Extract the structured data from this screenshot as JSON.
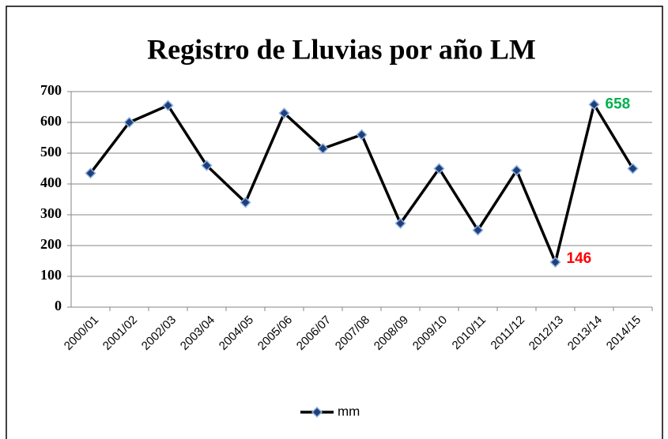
{
  "chart_data": {
    "type": "line",
    "title": "Registro de Lluvias por año LM",
    "categories": [
      "2000/01",
      "2001/02",
      "2002/03",
      "2003/04",
      "2004/05",
      "2005/06",
      "2006/07",
      "2007/08",
      "2008/09",
      "2009/10",
      "2010/11",
      "2011/12",
      "2012/13",
      "2013/14",
      "2014/15"
    ],
    "series": [
      {
        "name": "mm",
        "color": "#000000",
        "marker_color": "#1f3f7a",
        "values": [
          435,
          600,
          655,
          460,
          340,
          630,
          515,
          560,
          272,
          450,
          250,
          444,
          146,
          658,
          450
        ]
      }
    ],
    "data_labels": [
      {
        "index": 12,
        "color": "#ff0000"
      },
      {
        "index": 13,
        "color": "#00b050"
      }
    ],
    "ylim": [
      0,
      700
    ],
    "yticks": [
      0,
      100,
      200,
      300,
      400,
      500,
      600,
      700
    ],
    "grid": true,
    "legend": "bottom"
  }
}
